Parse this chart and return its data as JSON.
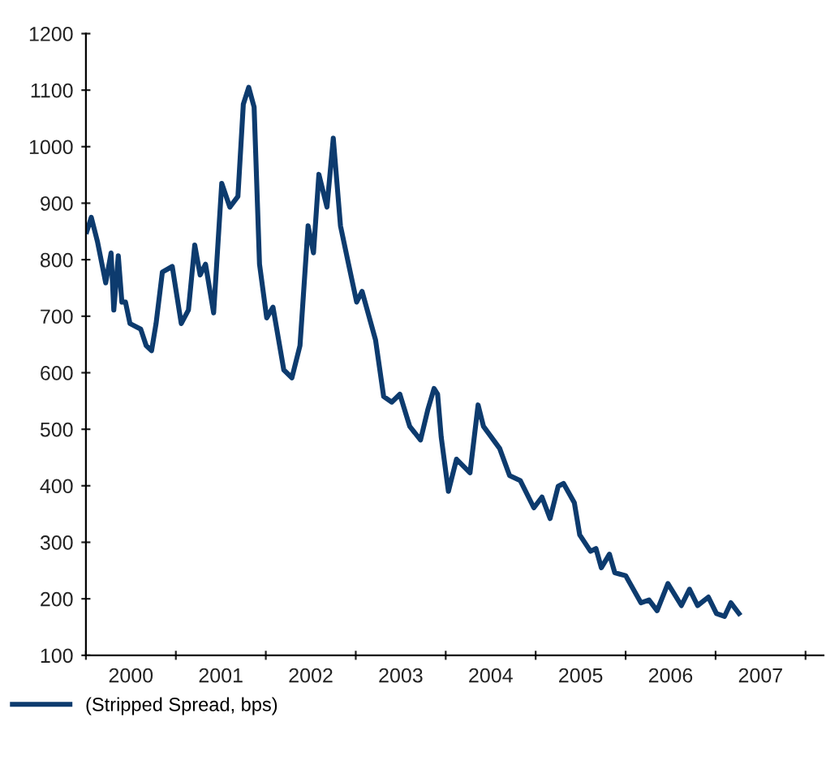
{
  "chart_data": {
    "type": "line",
    "x": [
      2000.01,
      2000.06,
      2000.13,
      2000.19,
      2000.22,
      2000.28,
      2000.31,
      2000.36,
      2000.4,
      2000.44,
      2000.49,
      2000.61,
      2000.67,
      2000.73,
      2000.78,
      2000.85,
      2000.96,
      2001.06,
      2001.14,
      2001.21,
      2001.27,
      2001.33,
      2001.42,
      2001.51,
      2001.6,
      2001.69,
      2001.75,
      2001.81,
      2001.87,
      2001.93,
      2002.01,
      2002.08,
      2002.2,
      2002.29,
      2002.38,
      2002.47,
      2002.53,
      2002.59,
      2002.68,
      2002.75,
      2002.83,
      2002.92,
      2003.01,
      2003.07,
      2003.22,
      2003.31,
      2003.4,
      2003.49,
      2003.6,
      2003.72,
      2003.8,
      2003.87,
      2003.91,
      2003.95,
      2004.03,
      2004.12,
      2004.27,
      2004.36,
      2004.42,
      2004.6,
      2004.71,
      2004.83,
      2004.98,
      2005.07,
      2005.16,
      2005.25,
      2005.31,
      2005.43,
      2005.49,
      2005.61,
      2005.67,
      2005.73,
      2005.82,
      2005.88,
      2006.0,
      2006.17,
      2006.26,
      2006.35,
      2006.47,
      2006.62,
      2006.71,
      2006.8,
      2006.92,
      2007.01,
      2007.1,
      2007.17,
      2007.26
    ],
    "series": [
      {
        "name": "(Stripped Spread, bps)",
        "color": "#0d3b6e",
        "values": [
          850,
          875,
          831,
          783,
          759,
          812,
          711,
          807,
          725,
          725,
          687,
          677,
          648,
          639,
          687,
          778,
          788,
          687,
          711,
          826,
          773,
          792,
          706,
          935,
          893,
          912,
          1075,
          1105,
          1070,
          792,
          697,
          716,
          605,
          591,
          648,
          860,
          812,
          951,
          893,
          1015,
          860,
          792,
          725,
          744,
          658,
          558,
          548,
          562,
          505,
          481,
          534,
          572,
          562,
          486,
          390,
          447,
          423,
          543,
          505,
          466,
          418,
          409,
          361,
          380,
          342,
          399,
          404,
          370,
          313,
          284,
          289,
          255,
          279,
          246,
          241,
          193,
          198,
          179,
          227,
          188,
          217,
          188,
          203,
          174,
          169,
          193,
          174
        ]
      }
    ],
    "xlim": [
      2000,
      2008.2
    ],
    "xticks": [
      {
        "value": 2000,
        "label": null
      },
      {
        "value": 2000.5,
        "label": "2000"
      },
      {
        "value": 2001,
        "label": null
      },
      {
        "value": 2001.5,
        "label": "2001"
      },
      {
        "value": 2002,
        "label": null
      },
      {
        "value": 2002.5,
        "label": "2002"
      },
      {
        "value": 2003,
        "label": null
      },
      {
        "value": 2003.5,
        "label": "2003"
      },
      {
        "value": 2004,
        "label": null
      },
      {
        "value": 2004.5,
        "label": "2004"
      },
      {
        "value": 2005,
        "label": null
      },
      {
        "value": 2005.5,
        "label": "2005"
      },
      {
        "value": 2006,
        "label": null
      },
      {
        "value": 2006.5,
        "label": "2006"
      },
      {
        "value": 2007,
        "label": null
      },
      {
        "value": 2007.5,
        "label": "2007"
      },
      {
        "value": 2008,
        "label": null
      }
    ],
    "ylim": [
      100,
      1200
    ],
    "yticks": [
      100,
      200,
      300,
      400,
      500,
      600,
      700,
      800,
      900,
      1000,
      1100,
      1200
    ],
    "grid": false,
    "legend": "bottom left",
    "marker": "none",
    "line_style": "solid"
  }
}
